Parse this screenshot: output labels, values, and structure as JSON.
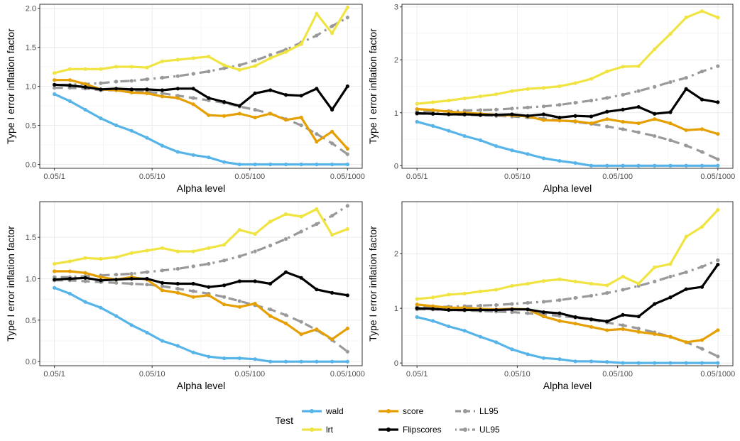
{
  "chart_data": [
    {
      "type": "line",
      "xlabel": "Alpha level",
      "ylabel": "Type I error inflation factor",
      "x_tick_labels": [
        "0.05/1",
        "0.05/10",
        "0.05/100",
        "0.05/1000"
      ],
      "x_tick_values": [
        1,
        10,
        100,
        1000
      ],
      "x_scale": "log",
      "y_tick_labels": [
        "0.0",
        "0.5",
        "1.0",
        "1.5",
        "2.0"
      ],
      "y_tick_values": [
        0,
        0.5,
        1,
        1.5,
        2
      ],
      "ylim": [
        -0.05,
        2.05
      ],
      "grid": true,
      "x": [
        1,
        1.44,
        2.07,
        2.98,
        4.29,
        6.16,
        8.86,
        12.7,
        18.3,
        26.4,
        37.9,
        54.6,
        78.5,
        113,
        162,
        234,
        336,
        483,
        695,
        1000
      ],
      "series": [
        {
          "name": "wald",
          "values": [
            0.9,
            0.81,
            0.7,
            0.59,
            0.5,
            0.43,
            0.34,
            0.24,
            0.16,
            0.12,
            0.09,
            0.03,
            0,
            0,
            0,
            0,
            0,
            0,
            0,
            0
          ]
        },
        {
          "name": "lrt",
          "values": [
            1.17,
            1.22,
            1.22,
            1.22,
            1.25,
            1.25,
            1.24,
            1.32,
            1.34,
            1.36,
            1.38,
            1.27,
            1.21,
            1.26,
            1.36,
            1.44,
            1.54,
            1.93,
            1.68,
            2.01
          ]
        },
        {
          "name": "score",
          "values": [
            1.08,
            1.08,
            1.03,
            0.96,
            0.95,
            0.92,
            0.91,
            0.87,
            0.85,
            0.77,
            0.63,
            0.62,
            0.65,
            0.6,
            0.65,
            0.57,
            0.6,
            0.29,
            0.42,
            0.2
          ]
        },
        {
          "name": "Flipscores",
          "values": [
            1.02,
            1.01,
            0.99,
            0.96,
            0.97,
            0.96,
            0.96,
            0.95,
            0.97,
            0.97,
            0.85,
            0.8,
            0.75,
            0.91,
            0.95,
            0.89,
            0.88,
            0.97,
            0.7,
            1.0
          ]
        },
        {
          "name": "LL95",
          "values": [
            0.98,
            0.98,
            0.97,
            0.95,
            0.95,
            0.94,
            0.93,
            0.91,
            0.88,
            0.85,
            0.82,
            0.79,
            0.74,
            0.7,
            0.65,
            0.58,
            0.5,
            0.39,
            0.27,
            0.13
          ]
        },
        {
          "name": "UL95",
          "values": [
            1.02,
            1.02,
            1.03,
            1.04,
            1.06,
            1.07,
            1.09,
            1.11,
            1.13,
            1.16,
            1.19,
            1.23,
            1.27,
            1.33,
            1.4,
            1.47,
            1.56,
            1.65,
            1.77,
            1.88
          ]
        }
      ]
    },
    {
      "type": "line",
      "xlabel": "Alpha level",
      "ylabel": "Type I error inflation factor",
      "x_tick_labels": [
        "0.05/1",
        "0.05/10",
        "0.05/100",
        "0.05/1000"
      ],
      "x_tick_values": [
        1,
        10,
        100,
        1000
      ],
      "x_scale": "log",
      "y_tick_labels": [
        "0",
        "1",
        "2",
        "3"
      ],
      "y_tick_values": [
        0,
        1,
        2,
        3
      ],
      "ylim": [
        -0.05,
        3.05
      ],
      "grid": true,
      "x": [
        1,
        1.44,
        2.07,
        2.98,
        4.29,
        6.16,
        8.86,
        12.7,
        18.3,
        26.4,
        37.9,
        54.6,
        78.5,
        113,
        162,
        234,
        336,
        483,
        695,
        1000
      ],
      "series": [
        {
          "name": "wald",
          "values": [
            0.83,
            0.75,
            0.66,
            0.56,
            0.48,
            0.37,
            0.29,
            0.22,
            0.14,
            0.09,
            0.05,
            0,
            0,
            0,
            0,
            0,
            0,
            0,
            0,
            0
          ]
        },
        {
          "name": "lrt",
          "values": [
            1.17,
            1.2,
            1.23,
            1.27,
            1.31,
            1.35,
            1.41,
            1.45,
            1.47,
            1.5,
            1.56,
            1.64,
            1.78,
            1.87,
            1.88,
            2.2,
            2.49,
            2.8,
            2.92,
            2.8
          ]
        },
        {
          "name": "score",
          "values": [
            1.07,
            1.05,
            1.02,
            1.0,
            0.98,
            0.96,
            0.95,
            0.93,
            0.86,
            0.85,
            0.84,
            0.8,
            0.88,
            0.83,
            0.8,
            0.88,
            0.8,
            0.67,
            0.69,
            0.6
          ]
        },
        {
          "name": "Flipscores",
          "values": [
            0.99,
            0.98,
            0.97,
            0.97,
            0.96,
            0.96,
            0.97,
            0.94,
            0.97,
            0.91,
            0.94,
            0.93,
            1.02,
            1.06,
            1.11,
            0.98,
            1.01,
            1.45,
            1.25,
            1.2
          ]
        },
        {
          "name": "LL95",
          "values": [
            0.98,
            0.98,
            0.97,
            0.96,
            0.95,
            0.94,
            0.93,
            0.91,
            0.89,
            0.86,
            0.83,
            0.79,
            0.74,
            0.69,
            0.63,
            0.56,
            0.48,
            0.38,
            0.26,
            0.12
          ]
        },
        {
          "name": "UL95",
          "values": [
            1.02,
            1.02,
            1.03,
            1.04,
            1.05,
            1.06,
            1.08,
            1.1,
            1.12,
            1.15,
            1.19,
            1.23,
            1.28,
            1.34,
            1.41,
            1.49,
            1.58,
            1.66,
            1.78,
            1.88
          ]
        }
      ]
    },
    {
      "type": "line",
      "xlabel": "Alpha level",
      "ylabel": "Type I error inflation factor",
      "x_tick_labels": [
        "0.05/1",
        "0.05/10",
        "0.05/100",
        "0.05/1000"
      ],
      "x_tick_values": [
        1,
        10,
        100,
        1000
      ],
      "x_scale": "log",
      "y_tick_labels": [
        "0.0",
        "0.5",
        "1.0",
        "1.5"
      ],
      "y_tick_values": [
        0,
        0.5,
        1,
        1.5
      ],
      "ylim": [
        -0.05,
        1.93
      ],
      "grid": true,
      "x": [
        1,
        1.44,
        2.07,
        2.98,
        4.29,
        6.16,
        8.86,
        12.7,
        18.3,
        26.4,
        37.9,
        54.6,
        78.5,
        113,
        162,
        234,
        336,
        483,
        695,
        1000
      ],
      "series": [
        {
          "name": "wald",
          "values": [
            0.89,
            0.82,
            0.72,
            0.65,
            0.55,
            0.44,
            0.35,
            0.25,
            0.19,
            0.11,
            0.06,
            0.04,
            0.04,
            0.03,
            0,
            0,
            0,
            0,
            0,
            0
          ]
        },
        {
          "name": "lrt",
          "values": [
            1.18,
            1.21,
            1.25,
            1.24,
            1.26,
            1.31,
            1.34,
            1.37,
            1.33,
            1.33,
            1.37,
            1.41,
            1.59,
            1.54,
            1.69,
            1.78,
            1.75,
            1.84,
            1.53,
            1.6
          ]
        },
        {
          "name": "score",
          "values": [
            1.09,
            1.09,
            1.07,
            1.02,
            0.99,
            1.02,
            0.99,
            0.86,
            0.83,
            0.78,
            0.8,
            0.69,
            0.66,
            0.7,
            0.55,
            0.46,
            0.33,
            0.39,
            0.27,
            0.4
          ]
        },
        {
          "name": "Flipscores",
          "values": [
            0.99,
            1.0,
            1.01,
            0.98,
            0.99,
            1.0,
            1.0,
            0.95,
            0.94,
            0.94,
            0.9,
            0.92,
            0.97,
            0.97,
            0.94,
            1.08,
            1.01,
            0.87,
            0.83,
            0.8
          ]
        },
        {
          "name": "LL95",
          "values": [
            0.98,
            0.98,
            0.97,
            0.96,
            0.95,
            0.94,
            0.93,
            0.91,
            0.88,
            0.85,
            0.82,
            0.78,
            0.73,
            0.68,
            0.63,
            0.56,
            0.48,
            0.38,
            0.26,
            0.12
          ]
        },
        {
          "name": "UL95",
          "values": [
            1.02,
            1.02,
            1.03,
            1.04,
            1.05,
            1.06,
            1.08,
            1.1,
            1.12,
            1.15,
            1.18,
            1.22,
            1.27,
            1.33,
            1.4,
            1.48,
            1.57,
            1.66,
            1.76,
            1.88
          ]
        }
      ]
    },
    {
      "type": "line",
      "xlabel": "Alpha level",
      "ylabel": "Type I error inflation factor",
      "x_tick_labels": [
        "0.05/1",
        "0.05/10",
        "0.05/100",
        "0.05/1000"
      ],
      "x_tick_values": [
        1,
        10,
        100,
        1000
      ],
      "x_scale": "log",
      "y_tick_labels": [
        "0",
        "1",
        "2"
      ],
      "y_tick_values": [
        0,
        1,
        2
      ],
      "ylim": [
        -0.05,
        2.95
      ],
      "grid": true,
      "x": [
        1,
        1.44,
        2.07,
        2.98,
        4.29,
        6.16,
        8.86,
        12.7,
        18.3,
        26.4,
        37.9,
        54.6,
        78.5,
        113,
        162,
        234,
        336,
        483,
        695,
        1000
      ],
      "series": [
        {
          "name": "wald",
          "values": [
            0.84,
            0.77,
            0.67,
            0.59,
            0.48,
            0.38,
            0.25,
            0.16,
            0.09,
            0.07,
            0.03,
            0.03,
            0.02,
            0,
            0,
            0,
            0,
            0,
            0,
            0
          ]
        },
        {
          "name": "lrt",
          "values": [
            1.17,
            1.2,
            1.25,
            1.27,
            1.31,
            1.34,
            1.41,
            1.45,
            1.5,
            1.53,
            1.49,
            1.45,
            1.42,
            1.58,
            1.45,
            1.75,
            1.81,
            2.31,
            2.49,
            2.8
          ]
        },
        {
          "name": "score",
          "values": [
            1.07,
            1.04,
            1.01,
            1.01,
            0.99,
            0.98,
            0.99,
            0.98,
            0.85,
            0.77,
            0.72,
            0.66,
            0.6,
            0.62,
            0.57,
            0.53,
            0.48,
            0.38,
            0.42,
            0.6
          ]
        },
        {
          "name": "Flipscores",
          "values": [
            1.0,
            0.99,
            0.97,
            0.97,
            0.97,
            0.97,
            0.98,
            0.98,
            0.93,
            0.91,
            0.84,
            0.8,
            0.76,
            0.88,
            0.85,
            1.08,
            1.2,
            1.35,
            1.39,
            1.8
          ]
        },
        {
          "name": "LL95",
          "values": [
            0.98,
            0.98,
            0.97,
            0.96,
            0.95,
            0.94,
            0.93,
            0.91,
            0.89,
            0.86,
            0.83,
            0.79,
            0.74,
            0.69,
            0.63,
            0.56,
            0.48,
            0.38,
            0.26,
            0.12
          ]
        },
        {
          "name": "UL95",
          "values": [
            1.02,
            1.02,
            1.03,
            1.04,
            1.05,
            1.06,
            1.08,
            1.1,
            1.12,
            1.15,
            1.19,
            1.23,
            1.28,
            1.34,
            1.41,
            1.49,
            1.58,
            1.66,
            1.76,
            1.88
          ]
        }
      ]
    }
  ],
  "legend": {
    "title": "Test",
    "placement": "bottom",
    "items": [
      {
        "label": "wald",
        "color": "#56B4E9",
        "style": "solid-points"
      },
      {
        "label": "lrt",
        "color": "#F0E442",
        "style": "solid-points"
      },
      {
        "label": "score",
        "color": "#E69F00",
        "style": "solid-points"
      },
      {
        "label": "Flipscores",
        "color": "#000000",
        "style": "solid-points"
      },
      {
        "label": "LL95",
        "color": "#999999",
        "style": "dashed-points"
      },
      {
        "label": "UL95",
        "color": "#999999",
        "style": "dotdash-points"
      }
    ]
  }
}
